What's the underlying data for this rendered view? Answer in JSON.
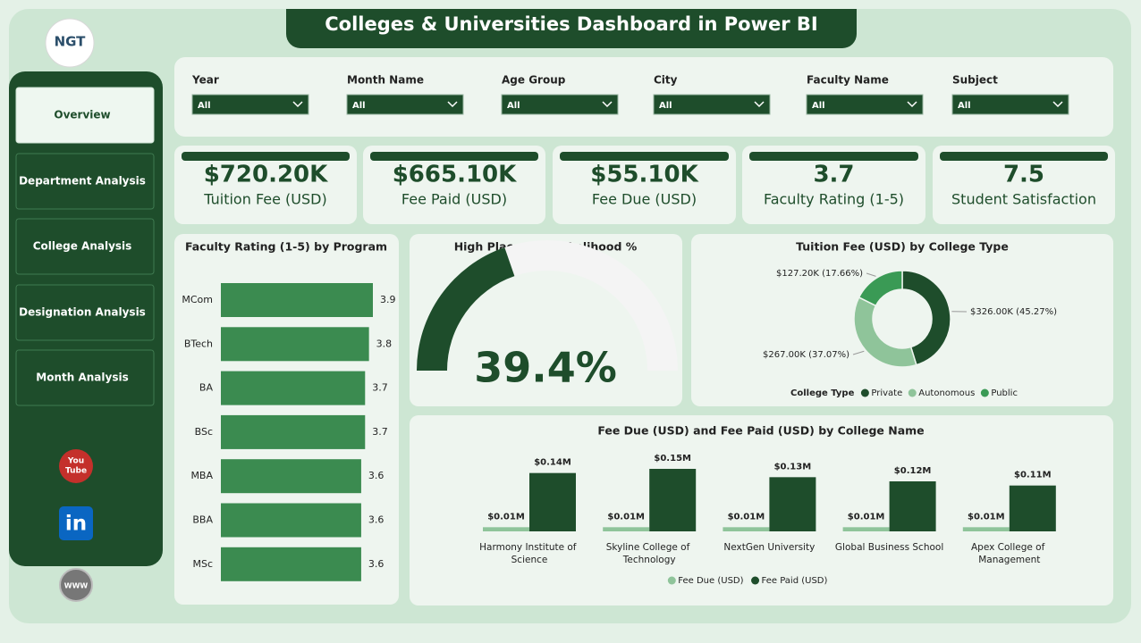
{
  "header": {
    "title": "Colleges & Universities Dashboard in Power BI",
    "logo": "NGT"
  },
  "nav": [
    "Overview",
    "Department Analysis",
    "College Analysis",
    "Designation Analysis",
    "Month Analysis"
  ],
  "icons": {
    "youtube": [
      "You",
      "Tube"
    ],
    "linkedin": "in",
    "web": "WWW"
  },
  "filters": [
    {
      "label": "Year",
      "value": "All"
    },
    {
      "label": "Month Name",
      "value": "All"
    },
    {
      "label": "Age Group",
      "value": "All"
    },
    {
      "label": "City",
      "value": "All"
    },
    {
      "label": "Faculty Name",
      "value": "All"
    },
    {
      "label": "Subject",
      "value": "All"
    }
  ],
  "kpis": [
    {
      "value": "$720.20K",
      "label": "Tuition Fee (USD)"
    },
    {
      "value": "$665.10K",
      "label": "Fee Paid (USD)"
    },
    {
      "value": "$55.10K",
      "label": "Fee Due (USD)"
    },
    {
      "value": "3.7",
      "label": "Faculty Rating (1-5)"
    },
    {
      "value": "7.5",
      "label": "Student Satisfaction"
    }
  ],
  "chart_data": [
    {
      "type": "hbar",
      "title": "Faculty Rating (1-5) by Program",
      "categories": [
        "MCom",
        "BTech",
        "BA",
        "BSc",
        "MBA",
        "BBA",
        "MSc"
      ],
      "values": [
        3.9,
        3.8,
        3.7,
        3.7,
        3.6,
        3.6,
        3.6
      ],
      "color": "#3b8b50"
    },
    {
      "type": "gauge",
      "title": "High Placement Likelihood %",
      "values": [
        39.4
      ],
      "value_labels": [
        "39.4%"
      ],
      "ylim": [
        0,
        100
      ],
      "color": "#1e4d2b"
    },
    {
      "type": "pie",
      "title": "Tuition Fee (USD) by College Type",
      "legend_title": "College Type",
      "categories": [
        "Private",
        "Autonomous",
        "Public"
      ],
      "values": [
        326000,
        267000,
        127200
      ],
      "value_labels": [
        "$326.00K (45.27%)",
        "$267.00K (37.07%)",
        "$127.20K (17.66%)"
      ],
      "colors": [
        "#1e4d2b",
        "#8fc49a",
        "#3a9a55"
      ]
    },
    {
      "type": "bar",
      "title": "Fee Due (USD) and Fee Paid (USD) by College Name",
      "categories": [
        "Harmony Institute of Science",
        "Skyline College of Technology",
        "NextGen University",
        "Global Business School",
        "Apex College of Management"
      ],
      "series": [
        {
          "name": "Fee Due (USD)",
          "color": "#8fc49a",
          "values": [
            10000,
            10000,
            10000,
            10000,
            10000
          ],
          "value_labels": [
            "$0.01M",
            "$0.01M",
            "$0.01M",
            "$0.01M",
            "$0.01M"
          ]
        },
        {
          "name": "Fee Paid (USD)",
          "color": "#1e4d2b",
          "values": [
            140000,
            150000,
            130000,
            120000,
            110000
          ],
          "value_labels": [
            "$0.14M",
            "$0.15M",
            "$0.13M",
            "$0.12M",
            "$0.11M"
          ]
        }
      ]
    }
  ]
}
